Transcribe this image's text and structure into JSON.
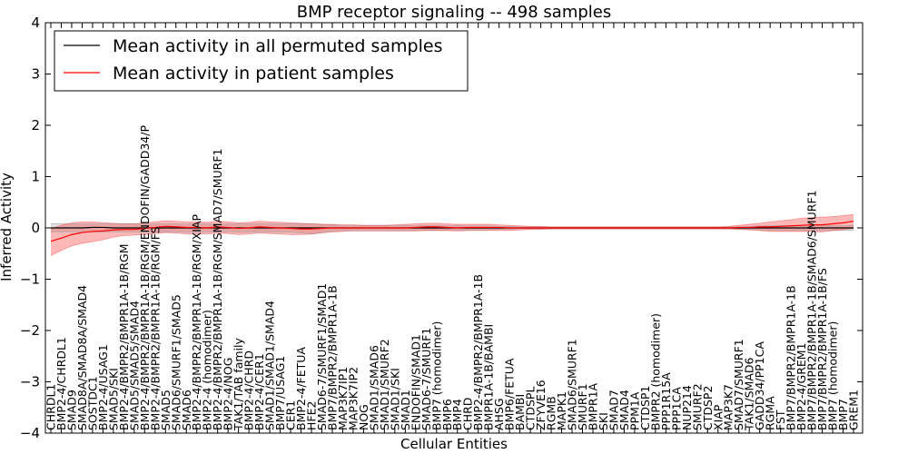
{
  "chart_data": {
    "type": "line",
    "title": "BMP receptor signaling -- 498 samples",
    "xlabel": "Cellular Entities",
    "ylabel": "Inferred Activity",
    "ylim": [
      -4,
      4
    ],
    "yticks": [
      -4,
      -3,
      -2,
      -1,
      0,
      1,
      2,
      3,
      4
    ],
    "ytick_labels": [
      "−4",
      "−3",
      "−2",
      "−1",
      "0",
      "1",
      "2",
      "3",
      "4"
    ],
    "legend": {
      "placement": "top-left",
      "entries": [
        {
          "label": "Mean activity in all permuted samples",
          "color": "#000000"
        },
        {
          "label": "Mean activity in patient samples",
          "color": "#ff0000"
        }
      ]
    },
    "categories": [
      "CHRDL1",
      "BMP2-4/CHRDL1",
      "SMAD9",
      "SMAD8A/SMAD8A/SMAD4",
      "SOSTDC1",
      "BMP2-4/USAG1",
      "SMAD5/SKI",
      "BMP2-4/BMPR2/BMPR1A-1B/RGM",
      "SMAD5/SMAD5/SMAD4",
      "BMP2-4/BMPR2/BMPR1A-1B/RGM/ENDOFIN/GADD34/P",
      "BMP2-4/BMPR2/BMPR1A-1B/RGM/FS",
      "SMAD5",
      "SMAD6/SMURF1/SMAD5",
      "SMAD6",
      "BMP2-4/BMPR2/BMPR1A-1B/RGM/XIAP",
      "BMP2-4 (homodimer)",
      "BMP2-4/BMPR2/BMPR1A-1B/RGM/SMAD7/SMURF1",
      "BMP2-4/NOG",
      "TAK1/TAB family",
      "BMP2-4/CHRD",
      "BMP2-4/CER1",
      "SMAD1/SMAD1/SMAD4",
      "BMP7/USAG1",
      "CER1",
      "BMP2-4/FETUA",
      "HFE2",
      "SMAD6-7/SMURF1/SMAD1",
      "BMP7/BMPR2/BMPR1A-1B",
      "MAP3K7IP1",
      "MAP3K7IP2",
      "NOG",
      "SMAD1/SMAD6",
      "SMAD1/SMURF2",
      "SMAD1/SKI",
      "SMAD1",
      "ENDOFIN/SMAD1",
      "SMAD6-7/SMURF1",
      "BMP7 (homodimer)",
      "BMP6",
      "BMP4",
      "CHRD",
      "BMP2-4/BMPR2/BMPR1A-1B",
      "BMPR1A-1B/BAMBI",
      "AHSG",
      "BMP6/FETUA",
      "BAMBI",
      "CTDSPL",
      "ZFYVE16",
      "RGMB",
      "MAPK1",
      "SMAD6/SMURF1",
      "SMURF1",
      "BMPR1A",
      "SKI",
      "SMAD7",
      "SMAD4",
      "PPM1A",
      "CTDSP1",
      "BMPR2 (homodimer)",
      "PPP1R15A",
      "PPP1CA",
      "NUP214",
      "SMURF2",
      "CTDSP2",
      "XIAP",
      "MAP3K7",
      "SMAD7/SMURF1",
      "TAK1/SMAD6",
      "GADD34/PP1CA",
      "RGMA",
      "FST",
      "BMP7/BMPR2/BMPR1A-1B",
      "BMP2-4/GREM1",
      "BMP7/BMPR2/BMPR1A-1B/SMAD6/SMURF1",
      "BMP7/BMPR2/BMPR1A-1B/FS",
      "BMP7 (homodimer)",
      "BMP7",
      "GREM1"
    ],
    "series": [
      {
        "name": "Mean activity in patient samples",
        "color": "#ff0000",
        "values": [
          -0.26,
          -0.2,
          -0.13,
          -0.09,
          -0.07,
          -0.06,
          -0.04,
          -0.03,
          -0.03,
          -0.01,
          0.01,
          0.03,
          0.02,
          0.01,
          0.01,
          0.0,
          0.02,
          0.01,
          -0.01,
          0.0,
          0.02,
          0.01,
          0.0,
          -0.01,
          -0.02,
          -0.02,
          -0.01,
          0.0,
          0.0,
          0.0,
          0.0,
          0.0,
          0.0,
          0.0,
          0.0,
          0.01,
          0.02,
          0.02,
          0.01,
          0.0,
          0.01,
          0.01,
          0.01,
          0.01,
          0.0,
          0.0,
          0.0,
          0.0,
          0.0,
          0.0,
          0.0,
          0.0,
          0.0,
          0.0,
          0.0,
          0.0,
          0.0,
          0.0,
          0.0,
          0.0,
          0.0,
          0.0,
          0.0,
          0.0,
          0.0,
          0.0,
          0.01,
          0.01,
          0.02,
          0.02,
          0.03,
          0.04,
          0.05,
          0.06,
          0.06,
          0.08,
          0.1,
          0.13
        ],
        "upper": [
          -0.02,
          0.05,
          0.1,
          0.12,
          0.12,
          0.1,
          0.09,
          0.08,
          0.08,
          0.1,
          0.12,
          0.14,
          0.13,
          0.12,
          0.12,
          0.11,
          0.13,
          0.12,
          0.1,
          0.11,
          0.13,
          0.12,
          0.11,
          0.1,
          0.09,
          0.08,
          0.07,
          0.07,
          0.06,
          0.06,
          0.05,
          0.05,
          0.05,
          0.06,
          0.07,
          0.08,
          0.09,
          0.09,
          0.08,
          0.07,
          0.07,
          0.07,
          0.07,
          0.06,
          0.05,
          0.04,
          0.03,
          0.03,
          0.02,
          0.02,
          0.02,
          0.02,
          0.02,
          0.02,
          0.02,
          0.02,
          0.02,
          0.02,
          0.02,
          0.02,
          0.02,
          0.02,
          0.02,
          0.02,
          0.02,
          0.03,
          0.05,
          0.07,
          0.09,
          0.12,
          0.14,
          0.16,
          0.19,
          0.2,
          0.21,
          0.22,
          0.24,
          0.26
        ],
        "lower": [
          -0.54,
          -0.44,
          -0.35,
          -0.3,
          -0.27,
          -0.23,
          -0.18,
          -0.15,
          -0.14,
          -0.13,
          -0.11,
          -0.09,
          -0.1,
          -0.12,
          -0.12,
          -0.12,
          -0.1,
          -0.11,
          -0.13,
          -0.12,
          -0.1,
          -0.11,
          -0.12,
          -0.13,
          -0.13,
          -0.12,
          -0.1,
          -0.08,
          -0.07,
          -0.06,
          -0.06,
          -0.06,
          -0.06,
          -0.06,
          -0.06,
          -0.06,
          -0.05,
          -0.05,
          -0.05,
          -0.06,
          -0.05,
          -0.05,
          -0.05,
          -0.05,
          -0.05,
          -0.04,
          -0.03,
          -0.03,
          -0.02,
          -0.02,
          -0.02,
          -0.02,
          -0.02,
          -0.02,
          -0.02,
          -0.02,
          -0.02,
          -0.02,
          -0.02,
          -0.02,
          -0.02,
          -0.02,
          -0.02,
          -0.02,
          -0.02,
          -0.02,
          -0.03,
          -0.04,
          -0.05,
          -0.07,
          -0.07,
          -0.07,
          -0.07,
          -0.07,
          -0.08,
          -0.05,
          -0.03,
          -0.01
        ]
      },
      {
        "name": "Mean activity in all permuted samples",
        "color": "#000000",
        "band_color": "#c8c8c8",
        "values": [
          0.0,
          0.0,
          0.0,
          0.0,
          0.01,
          0.01,
          0.0,
          0.0,
          0.0,
          0.0,
          0.0,
          0.0,
          0.0,
          0.0,
          0.0,
          0.0,
          0.0,
          0.0,
          0.0,
          0.0,
          0.0,
          0.0,
          0.0,
          0.0,
          0.0,
          0.0,
          0.0,
          0.0,
          0.0,
          0.0,
          0.0,
          0.0,
          0.0,
          0.0,
          0.0,
          0.0,
          0.0,
          0.0,
          0.0,
          0.0,
          0.0,
          0.0,
          0.0,
          0.0,
          0.0,
          0.0,
          0.0,
          0.0,
          0.0,
          0.0,
          0.0,
          0.0,
          0.0,
          0.0,
          0.0,
          0.0,
          0.0,
          0.0,
          0.0,
          0.0,
          0.0,
          0.0,
          0.0,
          0.0,
          0.0,
          0.0,
          0.0,
          0.0,
          0.0,
          0.0,
          0.0,
          0.0,
          0.0,
          0.0,
          0.0,
          0.0,
          0.0,
          0.0
        ],
        "upper": [
          0.08,
          0.08,
          0.08,
          0.08,
          0.08,
          0.08,
          0.08,
          0.08,
          0.08,
          0.08,
          0.08,
          0.08,
          0.08,
          0.08,
          0.08,
          0.08,
          0.08,
          0.08,
          0.08,
          0.08,
          0.08,
          0.08,
          0.08,
          0.08,
          0.08,
          0.08,
          0.07,
          0.06,
          0.05,
          0.05,
          0.05,
          0.05,
          0.05,
          0.05,
          0.05,
          0.05,
          0.05,
          0.05,
          0.05,
          0.05,
          0.04,
          0.04,
          0.04,
          0.03,
          0.03,
          0.02,
          0.02,
          0.02,
          0.02,
          0.02,
          0.02,
          0.02,
          0.02,
          0.02,
          0.02,
          0.02,
          0.02,
          0.02,
          0.02,
          0.02,
          0.02,
          0.02,
          0.02,
          0.02,
          0.02,
          0.02,
          0.02,
          0.03,
          0.04,
          0.05,
          0.05,
          0.05,
          0.05,
          0.05,
          0.05,
          0.05,
          0.05,
          0.05
        ],
        "lower": [
          -0.08,
          -0.08,
          -0.08,
          -0.08,
          -0.08,
          -0.08,
          -0.08,
          -0.08,
          -0.08,
          -0.08,
          -0.08,
          -0.08,
          -0.08,
          -0.08,
          -0.08,
          -0.08,
          -0.08,
          -0.08,
          -0.08,
          -0.08,
          -0.08,
          -0.08,
          -0.08,
          -0.08,
          -0.1,
          -0.12,
          -0.09,
          -0.06,
          -0.05,
          -0.05,
          -0.05,
          -0.05,
          -0.05,
          -0.05,
          -0.05,
          -0.05,
          -0.05,
          -0.05,
          -0.05,
          -0.05,
          -0.04,
          -0.04,
          -0.04,
          -0.03,
          -0.03,
          -0.02,
          -0.02,
          -0.02,
          -0.02,
          -0.02,
          -0.02,
          -0.02,
          -0.02,
          -0.02,
          -0.02,
          -0.02,
          -0.02,
          -0.02,
          -0.02,
          -0.02,
          -0.02,
          -0.02,
          -0.02,
          -0.02,
          -0.02,
          -0.02,
          -0.02,
          -0.03,
          -0.04,
          -0.05,
          -0.05,
          -0.05,
          -0.05,
          -0.05,
          -0.05,
          -0.05,
          -0.05,
          -0.05
        ]
      }
    ]
  }
}
